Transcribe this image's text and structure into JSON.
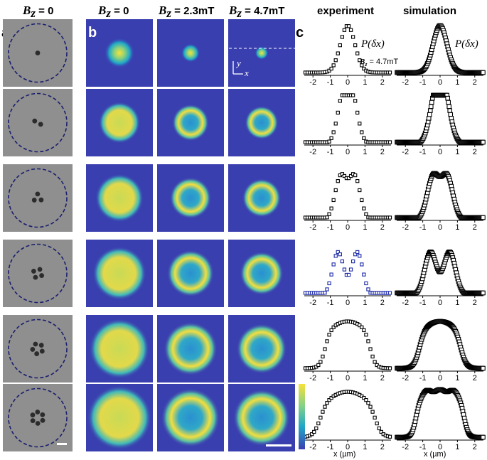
{
  "headers": {
    "col_a": {
      "var": "B",
      "sub": "z",
      "value": " = 0"
    },
    "col_b1": {
      "var": "B",
      "sub": "z",
      "value": " = 0"
    },
    "col_b2": {
      "var": "B",
      "sub": "z",
      "value": " = 2.3mT"
    },
    "col_b3": {
      "var": "B",
      "sub": "z",
      "value": " = 4.7mT"
    },
    "experiment": "experiment",
    "simulation": "simulation"
  },
  "panel_labels": {
    "a": "a",
    "b": "b",
    "c": "c"
  },
  "annotations": {
    "prob_label": "P(δx)",
    "bz_label": "B",
    "bz_sub": "z",
    "bz_value": " = 4.7mT",
    "axis_y": "y",
    "axis_x": "x",
    "xlabel_experiment": "x (µm)",
    "xlabel_simulation": "x (µm)"
  },
  "colors": {
    "heatmap_bg": "#3a3fb0",
    "heatmap_mid": "#1fa7c8",
    "heatmap_high": "#f7e23a",
    "micro_bg": "#8f8f8f",
    "dashed_circle": "#1a1f6e",
    "experiment_highlight": "#1c2aa8"
  },
  "rows": [
    {
      "particles": 1,
      "heatmaps": [
        {
          "shape": "blob",
          "size": 0.45
        },
        {
          "shape": "blob",
          "size": 0.28
        },
        {
          "shape": "blob",
          "size": 0.2
        }
      ]
    },
    {
      "particles": 2,
      "heatmaps": [
        {
          "shape": "disk",
          "size": 0.62
        },
        {
          "shape": "ring",
          "size": 0.55
        },
        {
          "shape": "ring",
          "size": 0.5
        }
      ]
    },
    {
      "particles": 3,
      "heatmaps": [
        {
          "shape": "disk",
          "size": 0.72
        },
        {
          "shape": "ring",
          "size": 0.62
        },
        {
          "shape": "ring",
          "size": 0.58
        }
      ]
    },
    {
      "particles": 4,
      "heatmaps": [
        {
          "shape": "disk",
          "size": 0.8
        },
        {
          "shape": "ring",
          "size": 0.7
        },
        {
          "shape": "ring",
          "size": 0.65
        }
      ]
    },
    {
      "particles": 5,
      "heatmaps": [
        {
          "shape": "disk",
          "size": 0.9
        },
        {
          "shape": "ring",
          "size": 0.8
        },
        {
          "shape": "ring",
          "size": 0.75
        }
      ]
    },
    {
      "particles": 6,
      "heatmaps": [
        {
          "shape": "disk",
          "size": 0.96
        },
        {
          "shape": "ring",
          "size": 0.88
        },
        {
          "shape": "ring",
          "size": 0.85
        }
      ]
    }
  ],
  "chart_data": [
    {
      "type": "scatter",
      "title": "experiment",
      "xlabel": "x (µm)",
      "xlim": [
        -2.5,
        2.5
      ],
      "x_ticks": [
        "-2",
        "-1",
        "0",
        "1",
        "2"
      ],
      "series": [
        {
          "profile": "single",
          "width": 0.42
        },
        {
          "profile": "double",
          "peaks": [
            -0.25,
            0.25
          ],
          "width": 0.35
        },
        {
          "profile": "double",
          "peaks": [
            -0.4,
            0.4
          ],
          "width": 0.33
        },
        {
          "profile": "double",
          "peaks": [
            -0.55,
            0.55
          ],
          "width": 0.32
        },
        {
          "profile": "plateau",
          "edge": 1.3
        },
        {
          "profile": "plateau2",
          "edge": 1.6
        }
      ]
    },
    {
      "type": "scatter",
      "title": "simulation",
      "xlabel": "x (µm)",
      "xlim": [
        -2.5,
        2.5
      ],
      "x_ticks": [
        "-2",
        "-1",
        "0",
        "1",
        "2"
      ],
      "series": [
        {
          "profile": "single",
          "width": 0.4
        },
        {
          "profile": "double",
          "peaks": [
            -0.22,
            0.22
          ],
          "width": 0.38
        },
        {
          "profile": "double",
          "peaks": [
            -0.4,
            0.4
          ],
          "width": 0.34
        },
        {
          "profile": "double",
          "peaks": [
            -0.55,
            0.55
          ],
          "width": 0.34
        },
        {
          "profile": "plateau",
          "edge": 1.2
        },
        {
          "profile": "triple",
          "edge": 1.4
        }
      ]
    }
  ]
}
